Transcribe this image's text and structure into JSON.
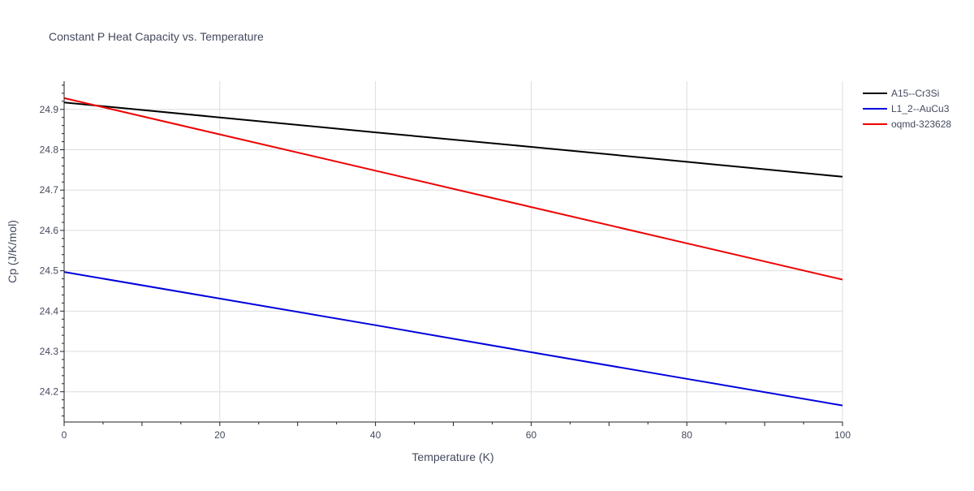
{
  "chart_data": {
    "type": "line",
    "title": "Constant P Heat Capacity vs. Temperature",
    "xlabel": "Temperature (K)",
    "ylabel": "Cp (J/K/mol)",
    "xlim": [
      0,
      100
    ],
    "ylim": [
      24.125,
      24.97
    ],
    "x_ticks": [
      0,
      20,
      40,
      60,
      80,
      100
    ],
    "y_ticks": [
      24.2,
      24.3,
      24.4,
      24.5,
      24.6,
      24.7,
      24.8,
      24.9
    ],
    "grid": true,
    "legend_position": "top-right",
    "x": [
      0,
      20,
      40,
      60,
      80,
      100
    ],
    "series": [
      {
        "name": "A15--Cr3Si",
        "color": "#000000",
        "values": [
          24.917,
          24.88,
          24.843,
          24.807,
          24.77,
          24.733
        ]
      },
      {
        "name": "L1_2--AuCu3",
        "color": "#0000dd",
        "values": [
          24.497,
          24.431,
          24.365,
          24.298,
          24.232,
          24.166
        ]
      },
      {
        "name": "oqmd-323628",
        "color": "#ee0000",
        "values": [
          24.928,
          24.838,
          24.748,
          24.658,
          24.568,
          24.478
        ]
      }
    ]
  }
}
